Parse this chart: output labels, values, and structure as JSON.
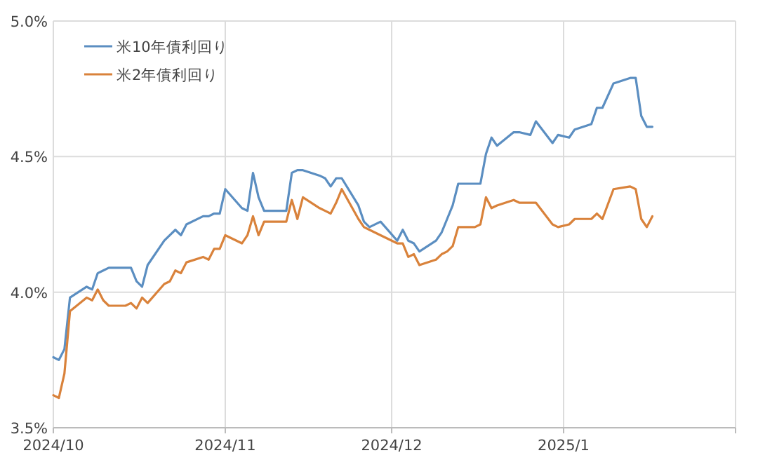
{
  "chart_data": {
    "type": "line",
    "x": [
      "2024-10-01",
      "2024-10-02",
      "2024-10-03",
      "2024-10-04",
      "2024-10-07",
      "2024-10-08",
      "2024-10-09",
      "2024-10-10",
      "2024-10-11",
      "2024-10-14",
      "2024-10-15",
      "2024-10-16",
      "2024-10-17",
      "2024-10-18",
      "2024-10-21",
      "2024-10-22",
      "2024-10-23",
      "2024-10-24",
      "2024-10-25",
      "2024-10-28",
      "2024-10-29",
      "2024-10-30",
      "2024-10-31",
      "2024-11-01",
      "2024-11-04",
      "2024-11-05",
      "2024-11-06",
      "2024-11-07",
      "2024-11-08",
      "2024-11-11",
      "2024-11-12",
      "2024-11-13",
      "2024-11-14",
      "2024-11-15",
      "2024-11-18",
      "2024-11-19",
      "2024-11-20",
      "2024-11-21",
      "2024-11-22",
      "2024-11-25",
      "2024-11-26",
      "2024-11-27",
      "2024-11-29",
      "2024-12-02",
      "2024-12-03",
      "2024-12-04",
      "2024-12-05",
      "2024-12-06",
      "2024-12-09",
      "2024-12-10",
      "2024-12-11",
      "2024-12-12",
      "2024-12-13",
      "2024-12-16",
      "2024-12-17",
      "2024-12-18",
      "2024-12-19",
      "2024-12-20",
      "2024-12-23",
      "2024-12-24",
      "2024-12-26",
      "2024-12-27",
      "2024-12-30",
      "2024-12-31",
      "2025-01-02",
      "2025-01-03",
      "2025-01-06",
      "2025-01-07",
      "2025-01-08",
      "2025-01-10",
      "2025-01-13",
      "2025-01-14",
      "2025-01-15",
      "2025-01-16",
      "2025-01-17"
    ],
    "series": [
      {
        "name": "米10年債利回り",
        "color": "#5b8ec1",
        "values": [
          3.76,
          3.75,
          3.79,
          3.98,
          4.02,
          4.01,
          4.07,
          4.08,
          4.09,
          4.09,
          4.09,
          4.04,
          4.02,
          4.1,
          4.19,
          4.21,
          4.23,
          4.21,
          4.25,
          4.28,
          4.28,
          4.29,
          4.29,
          4.38,
          4.31,
          4.3,
          4.44,
          4.35,
          4.3,
          4.3,
          4.3,
          4.44,
          4.45,
          4.45,
          4.43,
          4.42,
          4.39,
          4.42,
          4.42,
          4.32,
          4.26,
          4.24,
          4.26,
          4.19,
          4.23,
          4.19,
          4.18,
          4.15,
          4.19,
          4.22,
          4.27,
          4.32,
          4.4,
          4.4,
          4.4,
          4.51,
          4.57,
          4.54,
          4.59,
          4.59,
          4.58,
          4.63,
          4.55,
          4.58,
          4.57,
          4.6,
          4.62,
          4.68,
          4.68,
          4.77,
          4.79,
          4.79,
          4.65,
          4.61,
          4.61
        ]
      },
      {
        "name": "米2年債利回り",
        "color": "#d9823b",
        "values": [
          3.62,
          3.61,
          3.7,
          3.93,
          3.98,
          3.97,
          4.01,
          3.97,
          3.95,
          3.95,
          3.96,
          3.94,
          3.98,
          3.96,
          4.03,
          4.04,
          4.08,
          4.07,
          4.11,
          4.13,
          4.12,
          4.16,
          4.16,
          4.21,
          4.18,
          4.21,
          4.28,
          4.21,
          4.26,
          4.26,
          4.26,
          4.34,
          4.27,
          4.35,
          4.31,
          4.3,
          4.29,
          4.33,
          4.38,
          4.27,
          4.24,
          4.23,
          4.21,
          4.18,
          4.18,
          4.13,
          4.14,
          4.1,
          4.12,
          4.14,
          4.15,
          4.17,
          4.24,
          4.24,
          4.25,
          4.35,
          4.31,
          4.32,
          4.34,
          4.33,
          4.33,
          4.33,
          4.25,
          4.24,
          4.25,
          4.27,
          4.27,
          4.29,
          4.27,
          4.38,
          4.39,
          4.38,
          4.27,
          4.24,
          4.28
        ]
      }
    ],
    "xlim": [
      "2024-10-01",
      "2025-02-01"
    ],
    "xticks": [
      {
        "value": "2024-10-01",
        "label": "2024/10"
      },
      {
        "value": "2024-11-01",
        "label": "2024/11"
      },
      {
        "value": "2024-12-01",
        "label": "2024/12"
      },
      {
        "value": "2025-01-01",
        "label": "2025/1"
      },
      {
        "value": "2025-02-01",
        "label": null
      }
    ],
    "ylim": [
      3.5,
      5.0
    ],
    "yticks": [
      {
        "value": 3.5,
        "label": "3.5%"
      },
      {
        "value": 4.0,
        "label": "4.0%"
      },
      {
        "value": 4.5,
        "label": "4.5%"
      },
      {
        "value": 5.0,
        "label": "5.0%"
      }
    ],
    "grid": true,
    "legend": "top left"
  }
}
